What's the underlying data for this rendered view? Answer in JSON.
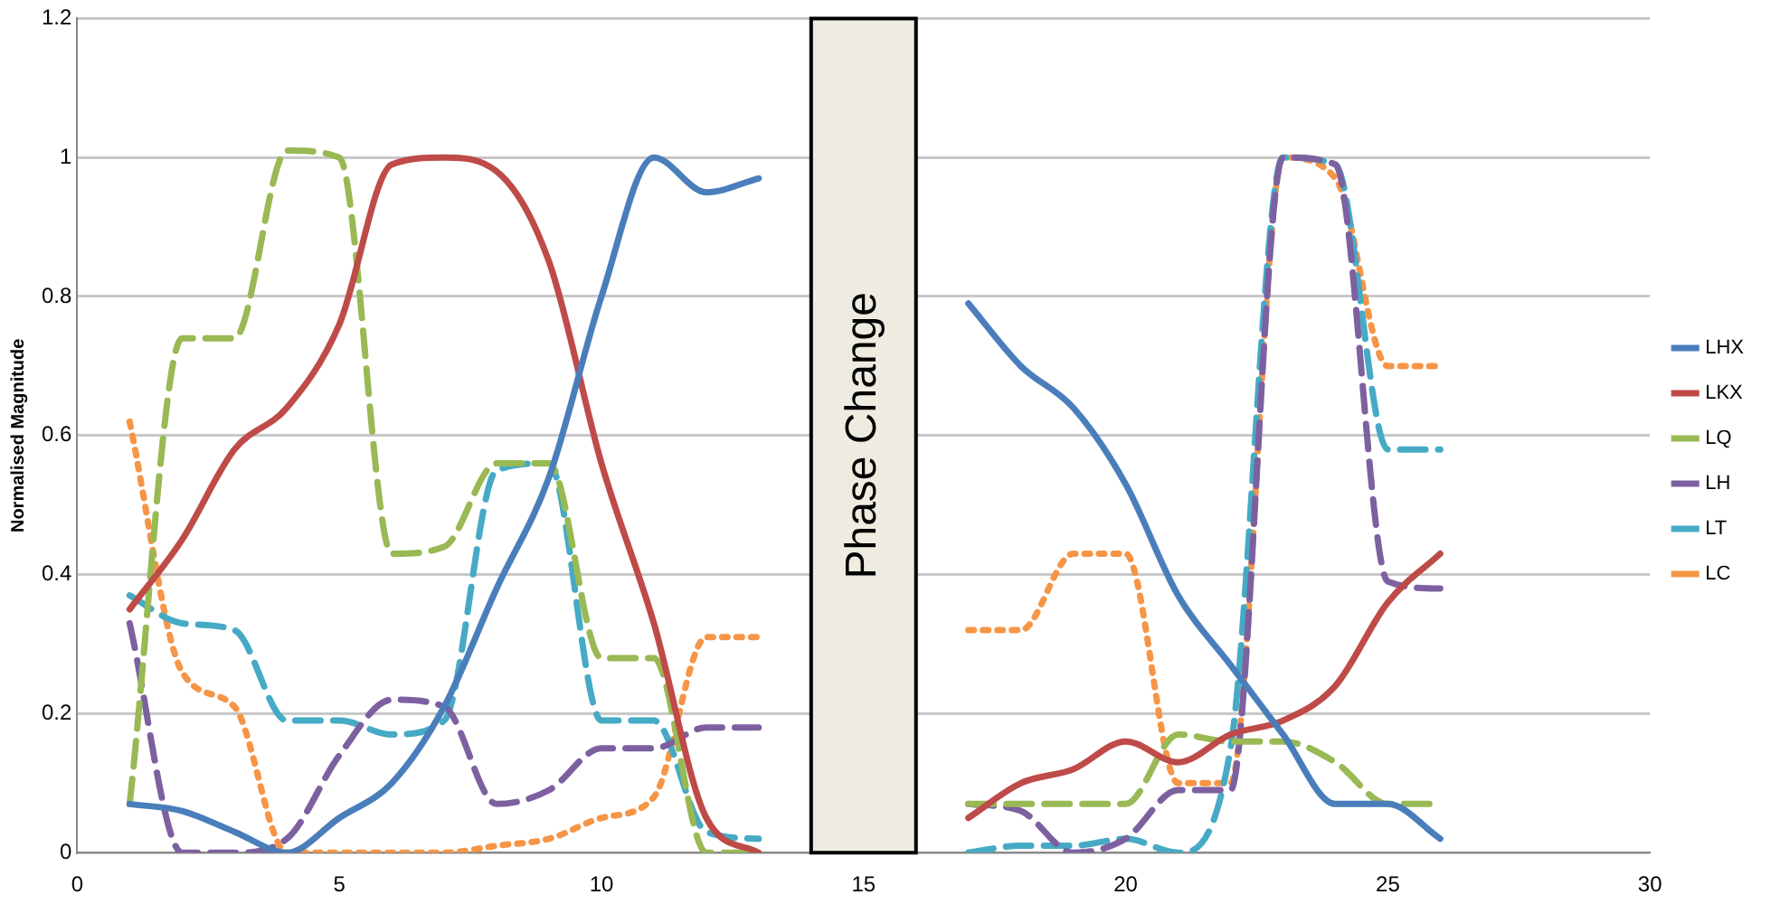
{
  "chart_data": {
    "type": "line",
    "ylabel": "Normalised Magnitude",
    "x": [
      1,
      2,
      3,
      4,
      5,
      6,
      7,
      8,
      9,
      10,
      11,
      12,
      13,
      14,
      15,
      16,
      17,
      18,
      19,
      20,
      21,
      22,
      23,
      24,
      25,
      26
    ],
    "series": [
      {
        "name": "LHX",
        "color": "#4a7ebb",
        "line_style": "solid",
        "values": [
          0.07,
          0.06,
          0.03,
          0.0,
          0.05,
          0.1,
          0.21,
          0.38,
          0.54,
          0.8,
          1.0,
          0.95,
          0.97,
          null,
          null,
          null,
          0.79,
          0.7,
          0.64,
          0.53,
          0.37,
          0.27,
          0.17,
          0.07,
          0.07,
          0.02
        ]
      },
      {
        "name": "LKX",
        "color": "#be4b48",
        "line_style": "solid",
        "values": [
          0.35,
          0.45,
          0.58,
          0.64,
          0.76,
          0.99,
          1.0,
          0.98,
          0.85,
          0.56,
          0.33,
          0.05,
          0.0,
          null,
          null,
          null,
          0.05,
          0.1,
          0.12,
          0.16,
          0.13,
          0.17,
          0.19,
          0.24,
          0.36,
          0.43
        ]
      },
      {
        "name": "LQ",
        "color": "#98b954",
        "line_style": "dashed",
        "values": [
          0.07,
          0.74,
          0.74,
          1.01,
          1.0,
          0.43,
          0.44,
          0.56,
          0.56,
          0.28,
          0.28,
          0.0,
          0.0,
          null,
          null,
          null,
          0.07,
          0.07,
          0.07,
          0.07,
          0.17,
          0.16,
          0.16,
          0.13,
          0.07,
          0.07
        ]
      },
      {
        "name": "LH",
        "color": "#7d60a0",
        "line_style": "dashed",
        "values": [
          0.33,
          0.0,
          0.0,
          0.02,
          0.14,
          0.22,
          0.21,
          0.07,
          0.09,
          0.15,
          0.15,
          0.18,
          0.18,
          null,
          null,
          null,
          0.07,
          0.06,
          0.0,
          0.02,
          0.09,
          0.09,
          1.0,
          0.99,
          0.39,
          0.38
        ]
      },
      {
        "name": "LT",
        "color": "#46aac5",
        "line_style": "dashed",
        "values": [
          0.37,
          0.33,
          0.32,
          0.19,
          0.19,
          0.17,
          0.19,
          0.55,
          0.56,
          0.19,
          0.19,
          0.03,
          0.02,
          null,
          null,
          null,
          0.0,
          0.01,
          0.01,
          0.02,
          0.0,
          0.15,
          1.0,
          0.99,
          0.58,
          0.58
        ]
      },
      {
        "name": "LC",
        "color": "#f69546",
        "line_style": "dotted",
        "values": [
          0.62,
          0.26,
          0.21,
          0.0,
          0.0,
          0.0,
          0.0,
          0.01,
          0.02,
          0.05,
          0.08,
          0.31,
          0.31,
          null,
          null,
          null,
          0.32,
          0.32,
          0.43,
          0.43,
          0.1,
          0.1,
          1.0,
          0.97,
          0.7,
          0.7
        ]
      }
    ],
    "xlim": [
      0,
      30
    ],
    "xticks": [
      0,
      5,
      10,
      15,
      20,
      25,
      30
    ],
    "ylim": [
      0,
      1.2
    ],
    "yticks": [
      0,
      0.2,
      0.4,
      0.6,
      0.8,
      1,
      1.2
    ],
    "bands": [
      {
        "axis": "x",
        "from": 14,
        "to": 16,
        "label": "Phase Change",
        "color": "#eeece1"
      }
    ],
    "grid": "y",
    "legend": "right",
    "marker": "none"
  }
}
